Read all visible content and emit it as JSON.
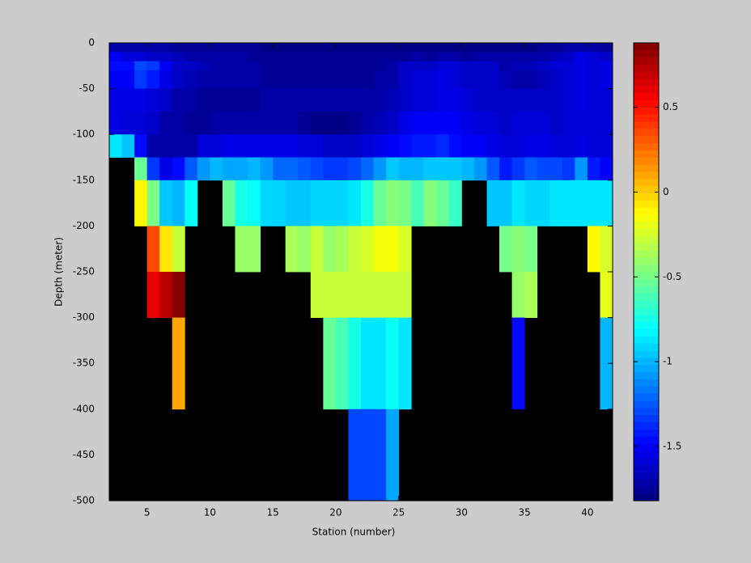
{
  "chart_data": {
    "type": "heatmap",
    "x_label": "Station (number)",
    "y_label": "Depth (meter)",
    "colormap": "jet",
    "xlim": [
      2,
      42
    ],
    "xticks": [
      5,
      10,
      15,
      20,
      25,
      30,
      35,
      40
    ],
    "ylim": [
      -500,
      0
    ],
    "yticks": [
      0,
      -50,
      -100,
      -150,
      -200,
      -250,
      -300,
      -350,
      -400,
      -450,
      -500
    ],
    "clim": [
      -1.82,
      0.88
    ],
    "cticks": [
      0.5,
      0,
      -0.5,
      -1,
      -1.5
    ],
    "x_edges": [
      2,
      3,
      4,
      5,
      6,
      7,
      8,
      9,
      10,
      11,
      12,
      13,
      14,
      15,
      16,
      17,
      18,
      19,
      20,
      21,
      22,
      23,
      24,
      25,
      26,
      27,
      28,
      29,
      30,
      31,
      32,
      33,
      34,
      35,
      36,
      37,
      38,
      39,
      40,
      41,
      42
    ],
    "y_edges": [
      0,
      -10,
      -20,
      -30,
      -50,
      -75,
      -100,
      -125,
      -150,
      -200,
      -250,
      -300,
      -400,
      -500
    ],
    "z": [
      [
        -1.7,
        -1.72,
        -1.72,
        -1.7,
        -1.72,
        -1.75,
        -1.75,
        -1.75,
        -1.75,
        -1.75,
        -1.75,
        -1.75,
        -1.78,
        -1.78,
        -1.78,
        -1.78,
        -1.78,
        -1.78,
        -1.78,
        -1.78,
        -1.78,
        -1.78,
        -1.78,
        -1.78,
        -1.78,
        -1.78,
        -1.78,
        -1.78,
        -1.8,
        -1.78,
        -1.78,
        -1.78,
        -1.78,
        -1.78,
        -1.75,
        -1.75,
        -1.7,
        -1.7,
        -1.72,
        -1.75
      ],
      [
        -1.5,
        -1.6,
        -1.6,
        -1.65,
        -1.65,
        -1.68,
        -1.7,
        -1.72,
        -1.72,
        -1.72,
        -1.72,
        -1.75,
        -1.75,
        -1.75,
        -1.75,
        -1.75,
        -1.75,
        -1.75,
        -1.75,
        -1.75,
        -1.75,
        -1.75,
        -1.75,
        -1.75,
        -1.72,
        -1.75,
        -1.72,
        -1.72,
        -1.75,
        -1.72,
        -1.72,
        -1.72,
        -1.72,
        -1.72,
        -1.7,
        -1.68,
        -1.62,
        -1.55,
        -1.6,
        -1.65
      ],
      [
        -1.45,
        -1.45,
        -1.3,
        -1.35,
        -1.5,
        -1.62,
        -1.65,
        -1.68,
        -1.7,
        -1.72,
        -1.72,
        -1.72,
        -1.75,
        -1.75,
        -1.75,
        -1.75,
        -1.75,
        -1.75,
        -1.75,
        -1.75,
        -1.75,
        -1.75,
        -1.72,
        -1.65,
        -1.62,
        -1.62,
        -1.58,
        -1.6,
        -1.65,
        -1.65,
        -1.65,
        -1.7,
        -1.68,
        -1.68,
        -1.65,
        -1.6,
        -1.6,
        -1.55,
        -1.6,
        -1.55
      ],
      [
        -1.5,
        -1.5,
        -1.35,
        -1.4,
        -1.55,
        -1.65,
        -1.68,
        -1.7,
        -1.72,
        -1.72,
        -1.72,
        -1.72,
        -1.75,
        -1.75,
        -1.75,
        -1.75,
        -1.75,
        -1.75,
        -1.75,
        -1.75,
        -1.75,
        -1.7,
        -1.7,
        -1.62,
        -1.6,
        -1.6,
        -1.55,
        -1.58,
        -1.62,
        -1.62,
        -1.65,
        -1.68,
        -1.7,
        -1.7,
        -1.68,
        -1.62,
        -1.6,
        -1.55,
        -1.6,
        -1.55
      ],
      [
        -1.55,
        -1.55,
        -1.55,
        -1.6,
        -1.65,
        -1.7,
        -1.72,
        -1.75,
        -1.75,
        -1.75,
        -1.75,
        -1.75,
        -1.72,
        -1.72,
        -1.72,
        -1.72,
        -1.72,
        -1.72,
        -1.72,
        -1.72,
        -1.72,
        -1.72,
        -1.68,
        -1.65,
        -1.6,
        -1.6,
        -1.55,
        -1.55,
        -1.6,
        -1.62,
        -1.62,
        -1.65,
        -1.65,
        -1.62,
        -1.65,
        -1.62,
        -1.6,
        -1.55,
        -1.6,
        -1.58
      ],
      [
        -1.55,
        -1.6,
        -1.6,
        -1.65,
        -1.7,
        -1.72,
        -1.75,
        -1.75,
        -1.72,
        -1.7,
        -1.72,
        -1.72,
        -1.72,
        -1.7,
        -1.72,
        -1.75,
        -1.8,
        -1.8,
        -1.78,
        -1.75,
        -1.72,
        -1.68,
        -1.62,
        -1.55,
        -1.52,
        -1.52,
        -1.5,
        -1.52,
        -1.55,
        -1.58,
        -1.6,
        -1.62,
        -1.6,
        -1.6,
        -1.6,
        -1.62,
        -1.6,
        -1.58,
        -1.6,
        -1.58
      ],
      [
        -0.85,
        -0.95,
        -1.45,
        -1.72,
        -1.72,
        -1.7,
        -1.7,
        -1.6,
        -1.6,
        -1.55,
        -1.55,
        -1.55,
        -1.55,
        -1.55,
        -1.55,
        -1.6,
        -1.6,
        -1.62,
        -1.62,
        -1.62,
        -1.6,
        -1.55,
        -1.52,
        -1.45,
        -1.42,
        -1.42,
        -1.38,
        -1.45,
        -1.5,
        -1.5,
        -1.55,
        -1.58,
        -1.58,
        -1.55,
        -1.55,
        -1.58,
        -1.58,
        -1.55,
        -1.58,
        -1.6
      ],
      [
        null,
        null,
        -0.55,
        -1.35,
        -1.55,
        -1.45,
        -1.25,
        -1.1,
        -1.0,
        -1.05,
        -1.05,
        -1.0,
        -1.1,
        -1.2,
        -1.2,
        -1.25,
        -1.3,
        -1.35,
        -1.35,
        -1.3,
        -1.2,
        -1.1,
        -0.95,
        -1.0,
        -1.0,
        -0.95,
        -0.95,
        -0.95,
        -1.0,
        -1.1,
        -1.25,
        -1.4,
        -1.35,
        -1.25,
        -1.3,
        -1.3,
        -1.35,
        -1.1,
        -1.4,
        -1.5
      ],
      [
        null,
        null,
        -0.1,
        -0.5,
        -0.95,
        -1.0,
        -0.8,
        null,
        null,
        -0.55,
        -0.75,
        -0.8,
        -0.9,
        -0.9,
        -0.95,
        -0.95,
        -0.9,
        -0.9,
        -0.9,
        -0.85,
        -0.75,
        -0.55,
        -0.45,
        -0.5,
        -0.6,
        -0.45,
        -0.55,
        -0.65,
        null,
        null,
        -0.95,
        -0.95,
        -0.85,
        -0.9,
        -0.9,
        -0.85,
        -0.85,
        -0.85,
        -0.85,
        -0.85
      ],
      [
        null,
        null,
        null,
        0.35,
        -0.05,
        -0.3,
        null,
        null,
        null,
        null,
        -0.4,
        -0.4,
        null,
        null,
        -0.35,
        -0.4,
        -0.3,
        -0.4,
        -0.35,
        -0.3,
        -0.25,
        -0.15,
        -0.15,
        -0.25,
        null,
        null,
        null,
        null,
        null,
        null,
        null,
        -0.5,
        -0.45,
        -0.5,
        null,
        null,
        null,
        null,
        -0.1,
        -0.25
      ],
      [
        null,
        null,
        null,
        0.6,
        0.75,
        0.85,
        null,
        null,
        null,
        null,
        null,
        null,
        null,
        null,
        null,
        null,
        -0.3,
        -0.3,
        -0.3,
        -0.3,
        -0.3,
        -0.3,
        -0.3,
        -0.3,
        null,
        null,
        null,
        null,
        null,
        null,
        null,
        null,
        -0.4,
        -0.35,
        null,
        null,
        null,
        null,
        null,
        -0.2
      ],
      [
        null,
        null,
        null,
        null,
        null,
        0.1,
        null,
        null,
        null,
        null,
        null,
        null,
        null,
        null,
        null,
        null,
        null,
        -0.55,
        -0.6,
        -0.75,
        -0.85,
        -0.85,
        -0.8,
        -0.85,
        null,
        null,
        null,
        null,
        null,
        null,
        null,
        null,
        -1.45,
        null,
        null,
        null,
        null,
        null,
        null,
        -1.0
      ],
      [
        null,
        null,
        null,
        null,
        null,
        null,
        null,
        null,
        null,
        null,
        null,
        null,
        null,
        null,
        null,
        null,
        null,
        null,
        null,
        -1.3,
        -1.3,
        -1.3,
        -1.05,
        null,
        null,
        null,
        null,
        null,
        null,
        null,
        null,
        null,
        null,
        null,
        null,
        null,
        null,
        null,
        null,
        null
      ]
    ]
  }
}
